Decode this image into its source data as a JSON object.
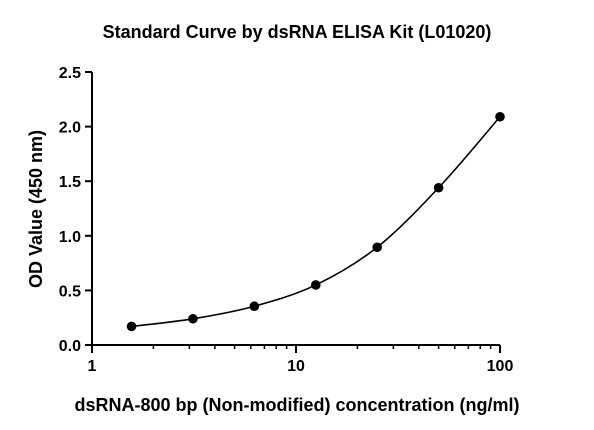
{
  "chart_data": {
    "type": "scatter",
    "title": "Standard Curve by dsRNA ELISA Kit (L01020)",
    "xlabel": "dsRNA-800 bp (Non-modified) concentration (ng/ml)",
    "ylabel": "OD Value (450 nm)",
    "x_scale": "log",
    "xlim": [
      1,
      100
    ],
    "ylim": [
      0,
      2.5
    ],
    "x_ticks": [
      1,
      10,
      100
    ],
    "x_tick_labels": [
      "1",
      "10",
      "100"
    ],
    "y_ticks": [
      0,
      0.5,
      1,
      1.5,
      2,
      2.5
    ],
    "y_tick_labels": [
      "0.0",
      "0.5",
      "1.0",
      "1.5",
      "2.0",
      "2.5"
    ],
    "grid": false,
    "legend": "none",
    "marker_color": "#000000",
    "line_color": "#000000",
    "fit_line": true,
    "series": [
      {
        "x": [
          1.5625,
          3.125,
          6.25,
          12.5,
          25,
          50,
          100
        ],
        "y": [
          0.17,
          0.24,
          0.355,
          0.55,
          0.895,
          1.44,
          2.09
        ]
      }
    ]
  }
}
